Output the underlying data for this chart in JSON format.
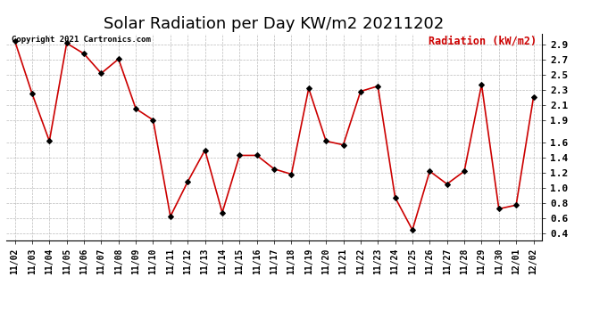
{
  "title": "Solar Radiation per Day KW/m2 20211202",
  "legend_label": "Radiation (kW/m2)",
  "copyright_text": "Copyright 2021 Cartronics.com",
  "dates": [
    "11/02",
    "11/03",
    "11/04",
    "11/05",
    "11/06",
    "11/07",
    "11/08",
    "11/09",
    "11/10",
    "11/11",
    "11/12",
    "11/13",
    "11/14",
    "11/15",
    "11/16",
    "11/17",
    "11/18",
    "11/19",
    "11/20",
    "11/21",
    "11/22",
    "11/23",
    "11/24",
    "11/25",
    "11/26",
    "11/27",
    "11/28",
    "11/29",
    "11/30",
    "12/01",
    "12/02"
  ],
  "values": [
    2.95,
    2.25,
    1.62,
    2.92,
    2.78,
    2.52,
    2.71,
    2.05,
    1.9,
    0.62,
    1.08,
    1.5,
    0.67,
    1.43,
    1.43,
    1.25,
    1.18,
    2.32,
    1.62,
    1.57,
    2.28,
    2.35,
    0.87,
    0.44,
    1.22,
    1.05,
    1.22,
    2.37,
    0.72,
    0.77,
    2.2
  ],
  "ylim": [
    0.3,
    3.05
  ],
  "yticks": [
    0.4,
    0.6,
    0.8,
    1.0,
    1.2,
    1.4,
    1.6,
    1.9,
    2.1,
    2.3,
    2.5,
    2.7,
    2.9
  ],
  "line_color": "#cc0000",
  "marker_color": "#000000",
  "grid_color": "#bbbbbb",
  "background_color": "#ffffff",
  "title_fontsize": 13,
  "legend_color": "#cc0000",
  "copyright_color": "#000000"
}
